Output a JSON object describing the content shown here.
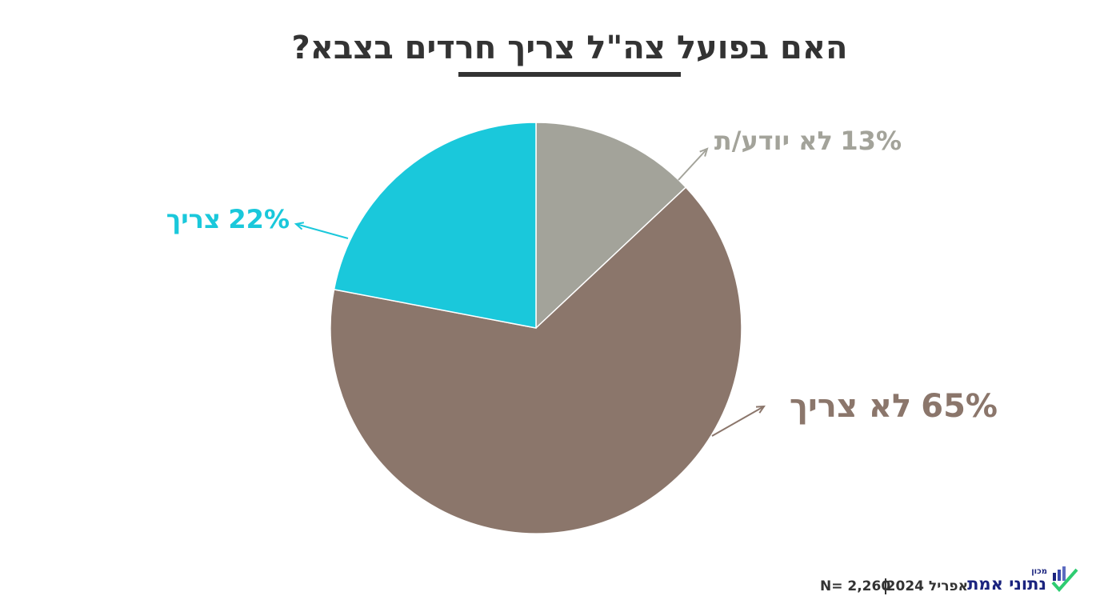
{
  "chart_data": {
    "type": "pie",
    "title": "האם בפועל צה\"ל צריך חרדים בצבא?",
    "categories": [
      "לא יודע/ת",
      "לא צריך",
      "צריך"
    ],
    "values": [
      13,
      65,
      22
    ],
    "value_labels": [
      "13%",
      "65%",
      "22%"
    ],
    "colors": [
      "#a3a39a",
      "#8b766b",
      "#1ac8db"
    ]
  },
  "footer": {
    "sample": "N= 2,260",
    "date": "אפריל 2024",
    "logo_small": "מכון",
    "logo": "נתוני אמת"
  }
}
